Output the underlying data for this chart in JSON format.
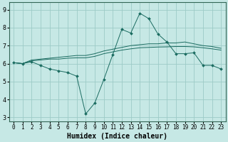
{
  "xlabel": "Humidex (Indice chaleur)",
  "ylabel": "",
  "xlim": [
    -0.5,
    23.5
  ],
  "ylim": [
    2.8,
    9.4
  ],
  "yticks": [
    3,
    4,
    5,
    6,
    7,
    8,
    9
  ],
  "xticks": [
    0,
    1,
    2,
    3,
    4,
    5,
    6,
    7,
    8,
    9,
    10,
    11,
    12,
    13,
    14,
    15,
    16,
    17,
    18,
    19,
    20,
    21,
    22,
    23
  ],
  "background_color": "#c6e8e5",
  "grid_color": "#9dcbc7",
  "line_color": "#1a6b60",
  "line1_x": [
    0,
    1,
    2,
    3,
    4,
    5,
    6,
    7,
    8,
    9,
    10,
    11,
    12,
    13,
    14,
    15,
    16,
    17,
    18,
    19,
    20,
    21,
    22,
    23
  ],
  "line1_y": [
    6.05,
    6.0,
    6.1,
    5.9,
    5.7,
    5.6,
    5.5,
    5.3,
    3.2,
    3.8,
    5.1,
    6.5,
    7.9,
    7.7,
    8.8,
    8.5,
    7.65,
    7.2,
    6.55,
    6.55,
    6.6,
    5.9,
    5.9,
    5.7
  ],
  "line2_x": [
    0,
    1,
    2,
    3,
    4,
    5,
    6,
    7,
    8,
    9,
    10,
    11,
    12,
    13,
    14,
    15,
    16,
    17,
    18,
    19,
    20,
    21,
    22,
    23
  ],
  "line2_y": [
    6.05,
    6.0,
    6.15,
    6.2,
    6.25,
    6.25,
    6.3,
    6.32,
    6.32,
    6.4,
    6.55,
    6.65,
    6.75,
    6.82,
    6.88,
    6.9,
    6.92,
    6.93,
    6.95,
    6.95,
    6.93,
    6.88,
    6.82,
    6.75
  ],
  "line3_x": [
    0,
    1,
    2,
    3,
    4,
    5,
    6,
    7,
    8,
    9,
    10,
    11,
    12,
    13,
    14,
    15,
    16,
    17,
    18,
    19,
    20,
    21,
    22,
    23
  ],
  "line3_y": [
    6.05,
    6.0,
    6.2,
    6.25,
    6.3,
    6.35,
    6.4,
    6.45,
    6.45,
    6.55,
    6.7,
    6.8,
    6.9,
    7.0,
    7.05,
    7.1,
    7.1,
    7.15,
    7.15,
    7.2,
    7.1,
    7.0,
    6.95,
    6.85
  ],
  "marker_x": [
    0,
    1,
    2,
    3,
    4,
    5,
    6,
    7,
    8,
    9,
    10,
    11,
    12,
    13,
    14,
    15,
    16,
    17,
    18,
    19,
    20,
    21,
    22,
    23
  ],
  "tick_fontsize": 5.5,
  "label_fontsize": 7
}
